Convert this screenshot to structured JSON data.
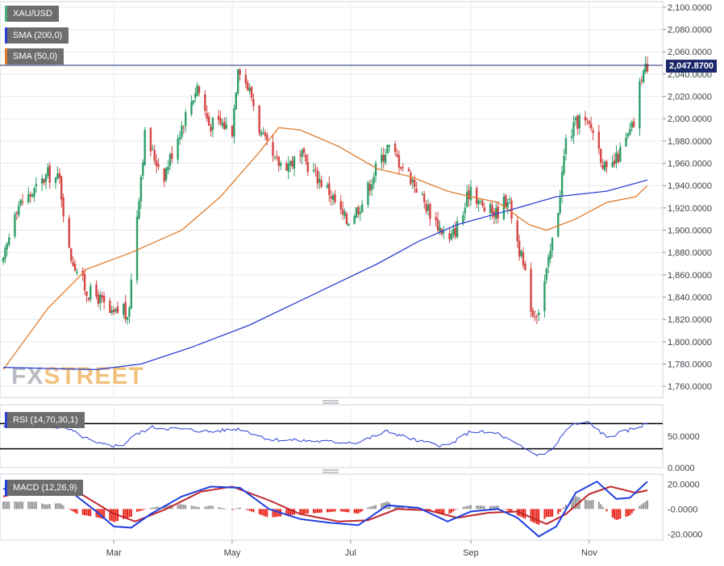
{
  "symbol": "XAU/USD",
  "indicators": {
    "sma200": {
      "label": "SMA (200,0)",
      "color": "#2b3fd4"
    },
    "sma50": {
      "label": "SMA (50,0)",
      "color": "#e07b2a"
    },
    "rsi": {
      "label": "RSI (14,70,30,1)",
      "color": "#2b3fd4"
    },
    "macd": {
      "label": "MACD (12,26,9)",
      "macd_color": "#1f3fe0",
      "signal_color": "#c0272d",
      "hist_pos_color": "#999999",
      "hist_neg_color": "#e8231a"
    }
  },
  "last_price_label": "2,047.8700",
  "watermark": {
    "fx": "FX",
    "street": "STREET"
  },
  "candle_colors": {
    "up": "#2e9e6a",
    "down": "#d64545"
  },
  "chart_data": {
    "type": "candlestick",
    "price_axis": {
      "ylim": [
        1750,
        2105
      ],
      "ticks": [
        1760,
        1780,
        1800,
        1820,
        1840,
        1860,
        1880,
        1900,
        1920,
        1940,
        1960,
        1980,
        2000,
        2020,
        2040,
        2060,
        2080,
        2100
      ],
      "tick_labels": [
        "1,760.0000",
        "1,780.0000",
        "1,800.0000",
        "1,820.0000",
        "1,840.0000",
        "1,860.0000",
        "1,880.0000",
        "1,900.0000",
        "1,920.0000",
        "1,940.0000",
        "1,960.0000",
        "1,980.0000",
        "2,000.0000",
        "2,020.0000",
        "2,040.0000",
        "2,060.0000",
        "2,080.0000",
        "2,100.0000"
      ]
    },
    "x_axis": {
      "months": [
        "Mar",
        "May",
        "Jul",
        "Sep",
        "Nov"
      ],
      "month_dates": [
        "2023-03-01",
        "2023-05-01",
        "2023-07-01",
        "2023-09-01",
        "2023-11-01"
      ]
    },
    "last_price": 2047.87,
    "close_path": [
      [
        "2023-01-03",
        1870
      ],
      [
        "2023-01-09",
        1920
      ],
      [
        "2023-01-19",
        1935
      ],
      [
        "2023-01-26",
        1950
      ],
      [
        "2023-02-01",
        1945
      ],
      [
        "2023-02-06",
        1880
      ],
      [
        "2023-02-10",
        1865
      ],
      [
        "2023-02-15",
        1845
      ],
      [
        "2023-02-21",
        1840
      ],
      [
        "2023-02-28",
        1822
      ],
      [
        "2023-03-06",
        1832
      ],
      [
        "2023-03-08",
        1815
      ],
      [
        "2023-03-13",
        1915
      ],
      [
        "2023-03-17",
        1985
      ],
      [
        "2023-03-22",
        1965
      ],
      [
        "2023-03-27",
        1950
      ],
      [
        "2023-04-03",
        1985
      ],
      [
        "2023-04-13",
        2030
      ],
      [
        "2023-04-19",
        1995
      ],
      [
        "2023-04-26",
        1995
      ],
      [
        "2023-05-01",
        1990
      ],
      [
        "2023-05-04",
        2050
      ],
      [
        "2023-05-11",
        2020
      ],
      [
        "2023-05-16",
        1985
      ],
      [
        "2023-05-23",
        1960
      ],
      [
        "2023-05-30",
        1960
      ],
      [
        "2023-06-06",
        1965
      ],
      [
        "2023-06-13",
        1950
      ],
      [
        "2023-06-20",
        1935
      ],
      [
        "2023-06-26",
        1915
      ],
      [
        "2023-06-29",
        1908
      ],
      [
        "2023-07-07",
        1925
      ],
      [
        "2023-07-14",
        1955
      ],
      [
        "2023-07-20",
        1975
      ],
      [
        "2023-07-27",
        1960
      ],
      [
        "2023-08-02",
        1945
      ],
      [
        "2023-08-08",
        1925
      ],
      [
        "2023-08-15",
        1905
      ],
      [
        "2023-08-21",
        1890
      ],
      [
        "2023-08-28",
        1915
      ],
      [
        "2023-09-01",
        1940
      ],
      [
        "2023-09-07",
        1920
      ],
      [
        "2023-09-14",
        1915
      ],
      [
        "2023-09-20",
        1930
      ],
      [
        "2023-09-27",
        1875
      ],
      [
        "2023-10-03",
        1825
      ],
      [
        "2023-10-06",
        1830
      ],
      [
        "2023-10-11",
        1870
      ],
      [
        "2023-10-16",
        1920
      ],
      [
        "2023-10-20",
        1980
      ],
      [
        "2023-10-27",
        2000
      ],
      [
        "2023-11-03",
        1990
      ],
      [
        "2023-11-10",
        1950
      ],
      [
        "2023-11-14",
        1960
      ],
      [
        "2023-11-20",
        1980
      ],
      [
        "2023-11-24",
        1995
      ],
      [
        "2023-11-28",
        2040
      ],
      [
        "2023-12-01",
        2047.87
      ]
    ],
    "sma200_path": [
      [
        "2023-01-03",
        1777
      ],
      [
        "2023-01-26",
        1776
      ],
      [
        "2023-02-20",
        1775
      ],
      [
        "2023-03-15",
        1780
      ],
      [
        "2023-04-10",
        1795
      ],
      [
        "2023-05-10",
        1815
      ],
      [
        "2023-06-15",
        1845
      ],
      [
        "2023-07-15",
        1870
      ],
      [
        "2023-08-05",
        1890
      ],
      [
        "2023-08-25",
        1905
      ],
      [
        "2023-09-25",
        1920
      ],
      [
        "2023-10-15",
        1930
      ],
      [
        "2023-11-10",
        1935
      ],
      [
        "2023-12-01",
        1945
      ]
    ],
    "sma50_path": [
      [
        "2023-01-03",
        1775
      ],
      [
        "2023-01-26",
        1830
      ],
      [
        "2023-02-15",
        1865
      ],
      [
        "2023-03-10",
        1880
      ],
      [
        "2023-04-05",
        1900
      ],
      [
        "2023-04-25",
        1930
      ],
      [
        "2023-05-15",
        1970
      ],
      [
        "2023-05-25",
        1992
      ],
      [
        "2023-06-05",
        1990
      ],
      [
        "2023-06-25",
        1975
      ],
      [
        "2023-07-15",
        1955
      ],
      [
        "2023-08-01",
        1948
      ],
      [
        "2023-08-20",
        1935
      ],
      [
        "2023-09-01",
        1930
      ],
      [
        "2023-09-15",
        1925
      ],
      [
        "2023-10-01",
        1905
      ],
      [
        "2023-10-10",
        1900
      ],
      [
        "2023-10-25",
        1910
      ],
      [
        "2023-11-10",
        1925
      ],
      [
        "2023-11-25",
        1930
      ],
      [
        "2023-12-01",
        1940
      ]
    ],
    "rsi": {
      "ylim": [
        0,
        100
      ],
      "ticks": [
        0,
        50
      ],
      "tick_labels": [
        "0.0000",
        "50.0000"
      ],
      "upper_level": 70,
      "lower_level": 30,
      "path": [
        [
          "2023-01-03",
          65
        ],
        [
          "2023-01-20",
          68
        ],
        [
          "2023-02-05",
          62
        ],
        [
          "2023-02-20",
          38
        ],
        [
          "2023-03-05",
          34
        ],
        [
          "2023-03-10",
          48
        ],
        [
          "2023-03-20",
          64
        ],
        [
          "2023-04-05",
          61
        ],
        [
          "2023-04-20",
          57
        ],
        [
          "2023-05-05",
          62
        ],
        [
          "2023-05-20",
          45
        ],
        [
          "2023-06-05",
          43
        ],
        [
          "2023-06-20",
          41
        ],
        [
          "2023-07-05",
          40
        ],
        [
          "2023-07-20",
          58
        ],
        [
          "2023-08-05",
          42
        ],
        [
          "2023-08-20",
          34
        ],
        [
          "2023-09-01",
          58
        ],
        [
          "2023-09-15",
          54
        ],
        [
          "2023-09-25",
          36
        ],
        [
          "2023-10-05",
          20
        ],
        [
          "2023-10-12",
          26
        ],
        [
          "2023-10-22",
          67
        ],
        [
          "2023-11-01",
          72
        ],
        [
          "2023-11-10",
          48
        ],
        [
          "2023-11-20",
          58
        ],
        [
          "2023-12-01",
          70
        ]
      ]
    },
    "macd": {
      "ylim": [
        -25,
        28
      ],
      "ticks": [
        -20,
        0,
        20
      ],
      "tick_labels": [
        "-20.0000",
        "-0.0000",
        "20.0000"
      ],
      "macd_path": [
        [
          "2023-01-03",
          16
        ],
        [
          "2023-01-20",
          22
        ],
        [
          "2023-02-01",
          21
        ],
        [
          "2023-02-20",
          -2
        ],
        [
          "2023-03-01",
          -14
        ],
        [
          "2023-03-10",
          -15
        ],
        [
          "2023-03-20",
          -4
        ],
        [
          "2023-04-05",
          10
        ],
        [
          "2023-04-20",
          18
        ],
        [
          "2023-05-05",
          17
        ],
        [
          "2023-05-20",
          0
        ],
        [
          "2023-06-05",
          -8
        ],
        [
          "2023-06-20",
          -11
        ],
        [
          "2023-07-05",
          -13
        ],
        [
          "2023-07-20",
          3
        ],
        [
          "2023-08-05",
          1
        ],
        [
          "2023-08-20",
          -10
        ],
        [
          "2023-09-01",
          -2
        ],
        [
          "2023-09-15",
          0
        ],
        [
          "2023-09-25",
          -7
        ],
        [
          "2023-10-06",
          -22
        ],
        [
          "2023-10-15",
          -14
        ],
        [
          "2023-10-25",
          13
        ],
        [
          "2023-11-05",
          22
        ],
        [
          "2023-11-15",
          8
        ],
        [
          "2023-11-22",
          9
        ],
        [
          "2023-12-01",
          22
        ]
      ],
      "signal_path": [
        [
          "2023-01-03",
          10
        ],
        [
          "2023-01-25",
          18
        ],
        [
          "2023-02-10",
          14
        ],
        [
          "2023-02-28",
          -3
        ],
        [
          "2023-03-12",
          -10
        ],
        [
          "2023-03-28",
          0
        ],
        [
          "2023-04-15",
          14
        ],
        [
          "2023-05-01",
          18
        ],
        [
          "2023-05-20",
          7
        ],
        [
          "2023-06-05",
          -4
        ],
        [
          "2023-06-25",
          -10
        ],
        [
          "2023-07-10",
          -9
        ],
        [
          "2023-07-25",
          0
        ],
        [
          "2023-08-10",
          -1
        ],
        [
          "2023-08-25",
          -7
        ],
        [
          "2023-09-10",
          -3
        ],
        [
          "2023-09-25",
          -2
        ],
        [
          "2023-10-10",
          -12
        ],
        [
          "2023-10-20",
          -4
        ],
        [
          "2023-11-01",
          12
        ],
        [
          "2023-11-12",
          18
        ],
        [
          "2023-11-25",
          13
        ],
        [
          "2023-12-01",
          15
        ]
      ]
    }
  }
}
